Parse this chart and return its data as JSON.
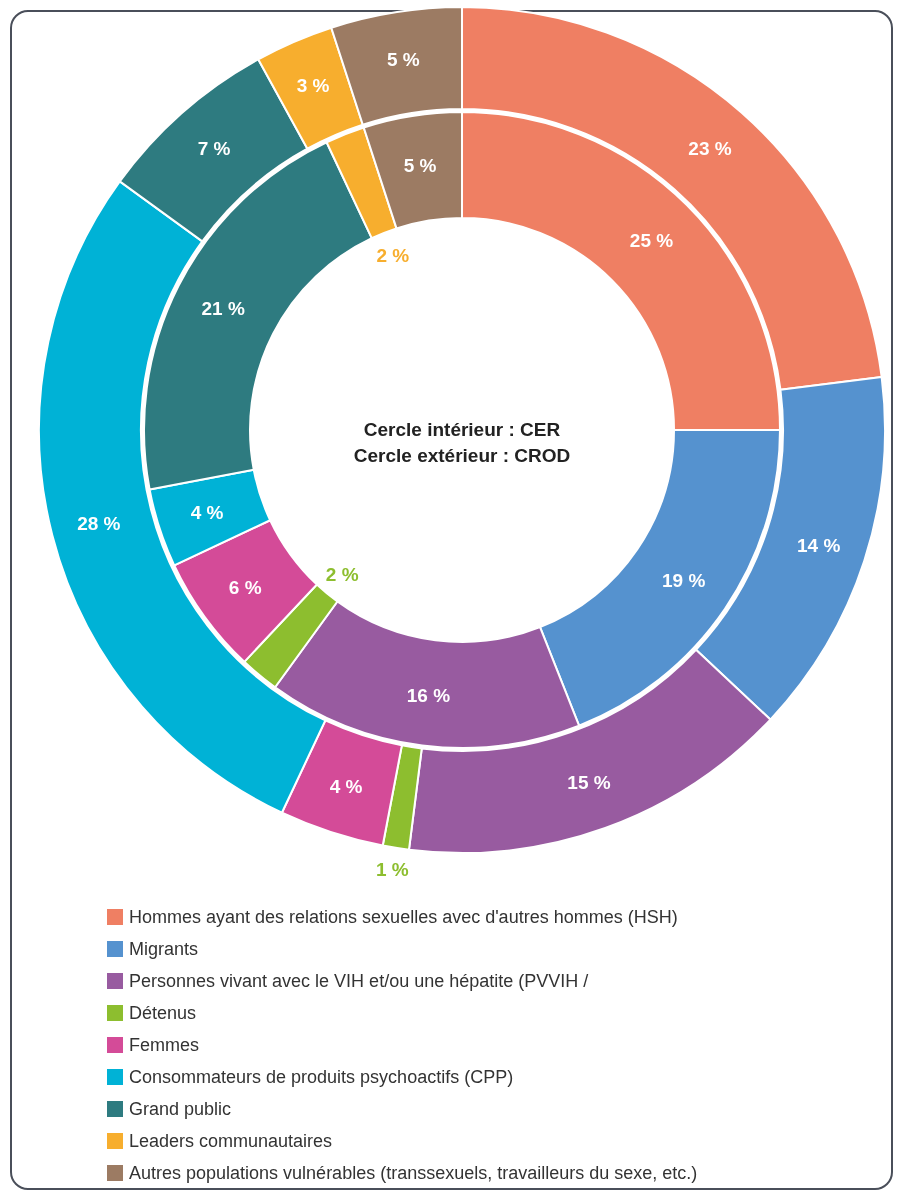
{
  "chart_data": {
    "type": "donut",
    "categories": [
      "Hommes ayant des relations sexuelles avec d'autres hommes (HSH)",
      "Migrants",
      "Personnes vivant avec le VIH et/ou une hépatite (PVVIH /",
      "Détenus",
      "Femmes",
      "Consommateurs de produits psychoactifs (CPP)",
      "Grand public",
      "Leaders communautaires",
      "Autres populations vulnérables (transsexuels, travailleurs du sexe, etc.)"
    ],
    "series": [
      {
        "values": [
          25,
          19,
          16,
          2,
          6,
          4,
          21,
          2,
          5
        ],
        "value_labels": [
          "25 %",
          "19 %",
          "16 %",
          "2 %",
          "6 %",
          "4 %",
          "21 %",
          "2 %",
          "5 %"
        ],
        "colors": [
          "#ef7f63",
          "#5592cf",
          "#985ba0",
          "#8dbe2f",
          "#d44b98",
          "#00b2d6",
          "#2e7b80",
          "#f7ae2e",
          "#9c7b63"
        ]
      },
      {
        "values": [
          23,
          14,
          15,
          1,
          4,
          28,
          7,
          3,
          5
        ],
        "value_labels": [
          "23 %",
          "14 %",
          "15 %",
          "1 %",
          "4 %",
          "28 %",
          "7 %",
          "3 %",
          "5 %"
        ],
        "colors": [
          "#ef7f63",
          "#5592cf",
          "#985ba0",
          "#8dbe2f",
          "#d44b98",
          "#00b2d6",
          "#2e7b80",
          "#f7ae2e",
          "#9c7b63"
        ]
      }
    ],
    "annotations": [
      "Cercle intérieur : CER",
      "Cercle extérieur : CROD"
    ],
    "legend": "bottom"
  }
}
